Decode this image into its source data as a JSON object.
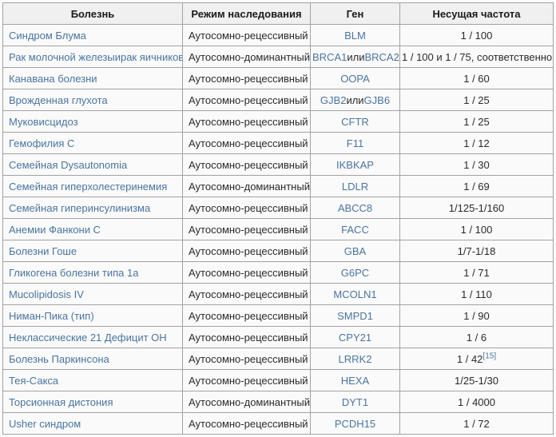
{
  "table": {
    "columns": [
      {
        "label": "Болезнь"
      },
      {
        "label": "Режим наследования"
      },
      {
        "label": "Ген"
      },
      {
        "label": "Несущая частота"
      }
    ],
    "rows": [
      {
        "disease": [
          {
            "text": "Синдром Блума",
            "link": true
          }
        ],
        "inheritance": "Аутосомно-рецессивный",
        "gene": [
          {
            "text": "BLM",
            "link": true
          }
        ],
        "frequency": [
          {
            "text": "1 / 100",
            "link": false
          }
        ]
      },
      {
        "disease": [
          {
            "text": "Рак молочной железыирак яичников",
            "link": true
          }
        ],
        "inheritance": "Аутосомно-доминантный",
        "gene": [
          {
            "text": "BRCA1",
            "link": true
          },
          {
            "text": "или",
            "link": false
          },
          {
            "text": "BRCA2",
            "link": true
          }
        ],
        "frequency": [
          {
            "text": "1 / 100 и 1 / 75, соответственно",
            "link": false
          }
        ]
      },
      {
        "disease": [
          {
            "text": "Канавана болезни",
            "link": true
          }
        ],
        "inheritance": "Аутосомно-рецессивный",
        "gene": [
          {
            "text": "OOPA",
            "link": true
          }
        ],
        "frequency": [
          {
            "text": "1 / 60",
            "link": false
          }
        ]
      },
      {
        "disease": [
          {
            "text": "Врожденная глухота",
            "link": true
          }
        ],
        "inheritance": "Аутосомно-рецессивный",
        "gene": [
          {
            "text": "GJB2",
            "link": true
          },
          {
            "text": "или",
            "link": false
          },
          {
            "text": "GJB6",
            "link": true
          }
        ],
        "frequency": [
          {
            "text": "1 / 25",
            "link": false
          }
        ]
      },
      {
        "disease": [
          {
            "text": "Муковисцидоз",
            "link": true
          }
        ],
        "inheritance": "Аутосомно-рецессивный",
        "gene": [
          {
            "text": "CFTR",
            "link": true
          }
        ],
        "frequency": [
          {
            "text": "1 / 25",
            "link": false
          }
        ]
      },
      {
        "disease": [
          {
            "text": "Гемофилия C",
            "link": true
          }
        ],
        "inheritance": "Аутосомно-рецессивный",
        "gene": [
          {
            "text": "F11",
            "link": true
          }
        ],
        "frequency": [
          {
            "text": "1 / 12",
            "link": false
          }
        ]
      },
      {
        "disease": [
          {
            "text": "Семейная Dysautonomia",
            "link": true
          }
        ],
        "inheritance": "Аутосомно-рецессивный",
        "gene": [
          {
            "text": "IKBKAP",
            "link": true
          }
        ],
        "frequency": [
          {
            "text": "1 / 30",
            "link": false
          }
        ]
      },
      {
        "disease": [
          {
            "text": "Семейная гиперхолестеринемия",
            "link": true
          }
        ],
        "inheritance": "Аутосомно-доминантный",
        "gene": [
          {
            "text": "LDLR",
            "link": true
          }
        ],
        "frequency": [
          {
            "text": "1 / 69",
            "link": false
          }
        ]
      },
      {
        "disease": [
          {
            "text": "Семейная гиперинсулинизма",
            "link": true
          }
        ],
        "inheritance": "Аутосомно-рецессивный",
        "gene": [
          {
            "text": "ABCC8",
            "link": true
          }
        ],
        "frequency": [
          {
            "text": "1/125-1/160",
            "link": false
          }
        ]
      },
      {
        "disease": [
          {
            "text": "Анемии Фанкони C",
            "link": true
          }
        ],
        "inheritance": "Аутосомно-рецессивный",
        "gene": [
          {
            "text": "FACC",
            "link": true
          }
        ],
        "frequency": [
          {
            "text": "1 / 100",
            "link": false
          }
        ]
      },
      {
        "disease": [
          {
            "text": "Болезни Гоше",
            "link": true
          }
        ],
        "inheritance": "Аутосомно-рецессивный",
        "gene": [
          {
            "text": "GBA",
            "link": true
          }
        ],
        "frequency": [
          {
            "text": "1/7-1/18",
            "link": false
          }
        ]
      },
      {
        "disease": [
          {
            "text": "Гликогена болезни типа 1a",
            "link": true
          }
        ],
        "inheritance": "Аутосомно-рецессивный",
        "gene": [
          {
            "text": "G6PC",
            "link": true
          }
        ],
        "frequency": [
          {
            "text": "1 / 71",
            "link": false
          }
        ]
      },
      {
        "disease": [
          {
            "text": "Mucolipidosis IV",
            "link": true
          }
        ],
        "inheritance": "Аутосомно-рецессивный",
        "gene": [
          {
            "text": "MCOLN1",
            "link": true
          }
        ],
        "frequency": [
          {
            "text": "1 / 110",
            "link": false
          }
        ]
      },
      {
        "disease": [
          {
            "text": "Ниман-Пика (тип)",
            "link": true
          }
        ],
        "inheritance": "Аутосомно-рецессивный",
        "gene": [
          {
            "text": "SMPD1",
            "link": true
          }
        ],
        "frequency": [
          {
            "text": "1 / 90",
            "link": false
          }
        ]
      },
      {
        "disease": [
          {
            "text": "Неклассические 21 Дефицит ОН",
            "link": true
          }
        ],
        "inheritance": "Аутосомно-рецессивный",
        "gene": [
          {
            "text": "CPY21",
            "link": true
          }
        ],
        "frequency": [
          {
            "text": "1 / 6",
            "link": false
          }
        ]
      },
      {
        "disease": [
          {
            "text": "Болезнь Паркинсона",
            "link": true
          }
        ],
        "inheritance": "Аутосомно-рецессивный",
        "gene": [
          {
            "text": "LRRK2",
            "link": true
          }
        ],
        "frequency": [
          {
            "text": "1 / 42",
            "link": false
          },
          {
            "text": "[15]",
            "link": true,
            "sup": true
          }
        ]
      },
      {
        "disease": [
          {
            "text": "Тея-Сакса",
            "link": true
          }
        ],
        "inheritance": "Аутосомно-рецессивный",
        "gene": [
          {
            "text": "HEXA",
            "link": true
          }
        ],
        "frequency": [
          {
            "text": "1/25-1/30",
            "link": false
          }
        ]
      },
      {
        "disease": [
          {
            "text": "Торсионная дистония",
            "link": true
          }
        ],
        "inheritance": "Аутосомно-доминантный",
        "gene": [
          {
            "text": "DYT1",
            "link": true
          }
        ],
        "frequency": [
          {
            "text": "1 / 4000",
            "link": false
          }
        ]
      },
      {
        "disease": [
          {
            "text": "Usher синдром",
            "link": true
          }
        ],
        "inheritance": "Аутосомно-рецессивный",
        "gene": [
          {
            "text": "PCDH15",
            "link": true
          }
        ],
        "frequency": [
          {
            "text": "1 / 72",
            "link": false
          }
        ]
      }
    ]
  },
  "colors": {
    "link": "#4a74a0",
    "text": "#2a2a2a",
    "header_bg": "#f0f0f0",
    "cell_bg": "#fafafa",
    "border": "#a2a2a2",
    "page_bg": "#fbfbfb"
  }
}
